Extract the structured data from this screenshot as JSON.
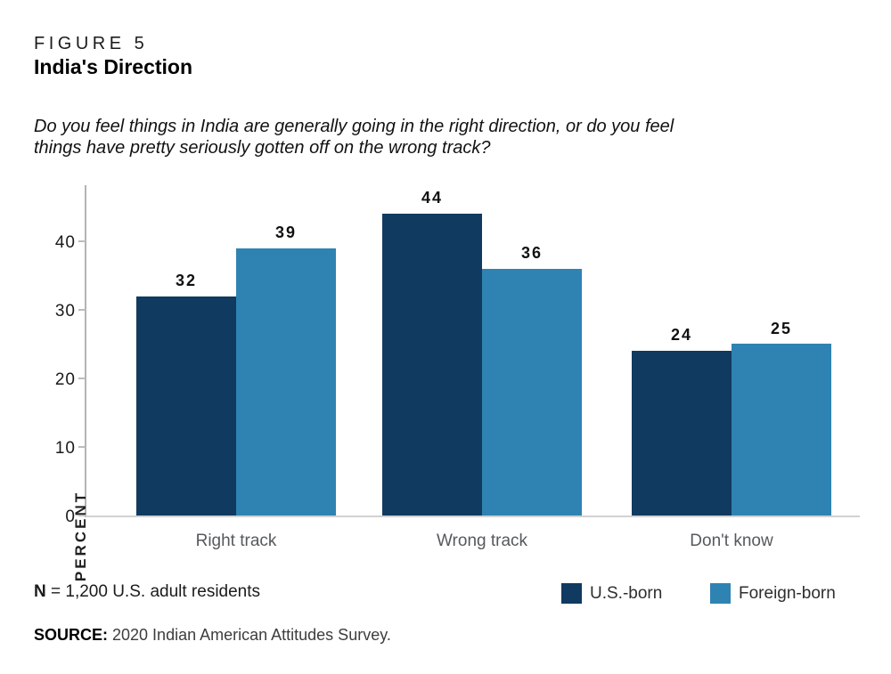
{
  "figure": {
    "label": "FIGURE 5",
    "title": "India's Direction"
  },
  "question_lines": [
    "Do you feel things in India are generally going in the right direction, or do you feel",
    "things have pretty seriously gotten off on the wrong track?"
  ],
  "chart_data": {
    "type": "bar",
    "categories": [
      "Right track",
      "Wrong track",
      "Don't know"
    ],
    "series": [
      {
        "name": "U.S.-born",
        "color": "#103a60",
        "values": [
          32,
          44,
          24
        ]
      },
      {
        "name": "Foreign-born",
        "color": "#2f83b2",
        "values": [
          39,
          36,
          25
        ]
      }
    ],
    "title": "India's Direction",
    "xlabel": "",
    "ylabel": "PERCENT",
    "yticks": [
      0,
      10,
      20,
      30,
      40
    ],
    "ylim": [
      0,
      48.4
    ],
    "grid": false,
    "legend_position": "bottom-right",
    "value_labels": true
  },
  "notes": {
    "n_bold": "N",
    "n_rest": " = 1,200 U.S. adult residents",
    "source_bold": "SOURCE:",
    "source_rest": " 2020 Indian American Attitudes Survey."
  },
  "colors": {
    "us_born": "#103a60",
    "foreign_born": "#2f83b2",
    "axis": "#b3b3b3",
    "baseline": "#d2d2d2"
  }
}
